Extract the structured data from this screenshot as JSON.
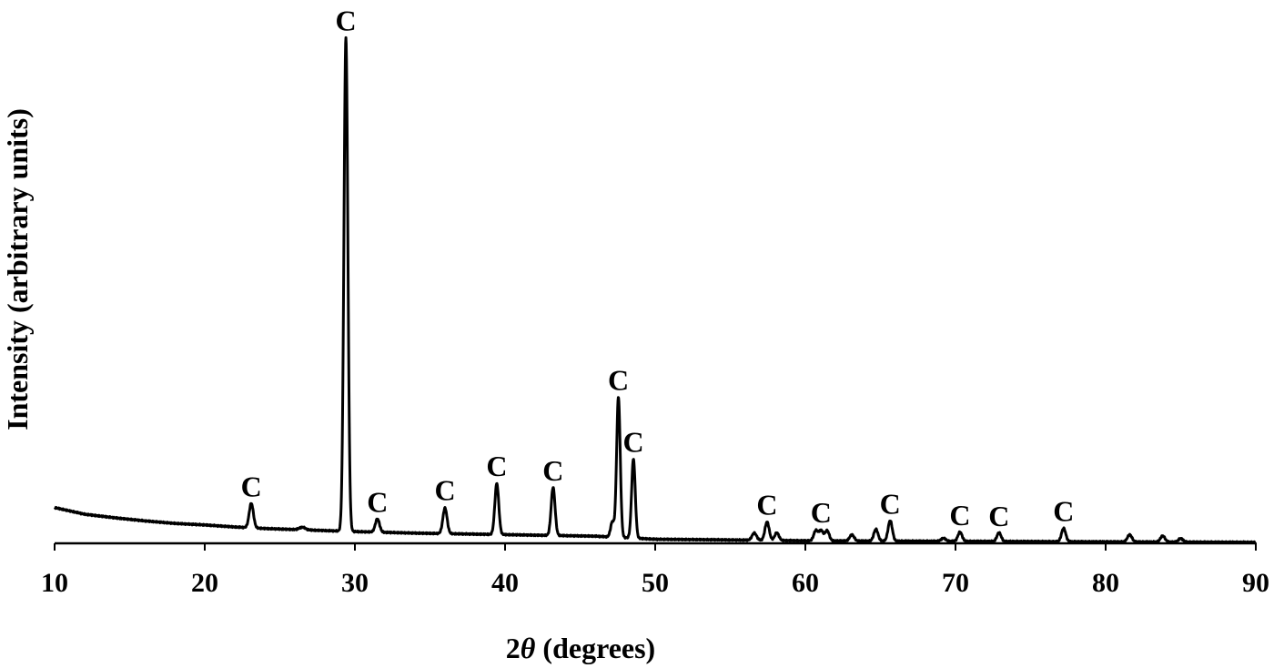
{
  "chart_data": {
    "type": "line",
    "xlabel_prefix": "2",
    "xlabel_symbol": "θ",
    "xlabel_suffix": " (degrees)",
    "ylabel": "Intensity (arbitrary units)",
    "xlim": [
      10,
      90
    ],
    "ylim": [
      0,
      1000
    ],
    "x_ticks": [
      10,
      20,
      30,
      40,
      50,
      60,
      70,
      80,
      90
    ],
    "grid": false,
    "legend": "none",
    "line_color": "#000000",
    "baseline": [
      [
        10,
        70
      ],
      [
        12,
        57
      ],
      [
        14,
        50
      ],
      [
        16,
        44
      ],
      [
        18,
        39
      ],
      [
        20,
        36
      ],
      [
        22,
        32
      ],
      [
        24,
        29
      ],
      [
        26,
        27
      ],
      [
        28,
        25
      ],
      [
        30,
        23
      ],
      [
        34,
        20
      ],
      [
        38,
        18
      ],
      [
        42,
        16
      ],
      [
        46,
        14
      ],
      [
        50,
        8
      ],
      [
        54,
        7
      ],
      [
        60,
        5
      ],
      [
        70,
        4
      ],
      [
        80,
        3
      ],
      [
        90,
        2
      ]
    ],
    "peaks": [
      {
        "x": 23.1,
        "height": 48,
        "width": 0.14,
        "label": "C"
      },
      {
        "x": 26.5,
        "height": 5,
        "width": 0.2,
        "label": ""
      },
      {
        "x": 29.4,
        "height": 967,
        "width": 0.13,
        "label": "C"
      },
      {
        "x": 31.5,
        "height": 26,
        "width": 0.14,
        "label": "C"
      },
      {
        "x": 36.0,
        "height": 50,
        "width": 0.14,
        "label": "C"
      },
      {
        "x": 39.45,
        "height": 100,
        "width": 0.13,
        "label": "C"
      },
      {
        "x": 43.2,
        "height": 94,
        "width": 0.13,
        "label": "C"
      },
      {
        "x": 47.15,
        "height": 30,
        "width": 0.12,
        "label": ""
      },
      {
        "x": 47.55,
        "height": 275,
        "width": 0.12,
        "label": "C"
      },
      {
        "x": 48.55,
        "height": 155,
        "width": 0.12,
        "label": "C"
      },
      {
        "x": 56.6,
        "height": 14,
        "width": 0.15,
        "label": ""
      },
      {
        "x": 57.45,
        "height": 36,
        "width": 0.14,
        "label": "C"
      },
      {
        "x": 58.1,
        "height": 15,
        "width": 0.14,
        "label": ""
      },
      {
        "x": 60.7,
        "height": 20,
        "width": 0.14,
        "label": ""
      },
      {
        "x": 61.05,
        "height": 20,
        "width": 0.14,
        "label": "C"
      },
      {
        "x": 61.45,
        "height": 20,
        "width": 0.14,
        "label": ""
      },
      {
        "x": 63.1,
        "height": 12,
        "width": 0.15,
        "label": ""
      },
      {
        "x": 64.7,
        "height": 23,
        "width": 0.14,
        "label": ""
      },
      {
        "x": 65.65,
        "height": 40,
        "width": 0.14,
        "label": "C"
      },
      {
        "x": 69.2,
        "height": 6,
        "width": 0.15,
        "label": ""
      },
      {
        "x": 70.3,
        "height": 18,
        "width": 0.14,
        "label": "C"
      },
      {
        "x": 72.9,
        "height": 17,
        "width": 0.14,
        "label": "C"
      },
      {
        "x": 77.2,
        "height": 26,
        "width": 0.14,
        "label": "C"
      },
      {
        "x": 81.6,
        "height": 14,
        "width": 0.15,
        "label": ""
      },
      {
        "x": 83.8,
        "height": 12,
        "width": 0.15,
        "label": ""
      },
      {
        "x": 85.0,
        "height": 7,
        "width": 0.15,
        "label": ""
      }
    ]
  }
}
